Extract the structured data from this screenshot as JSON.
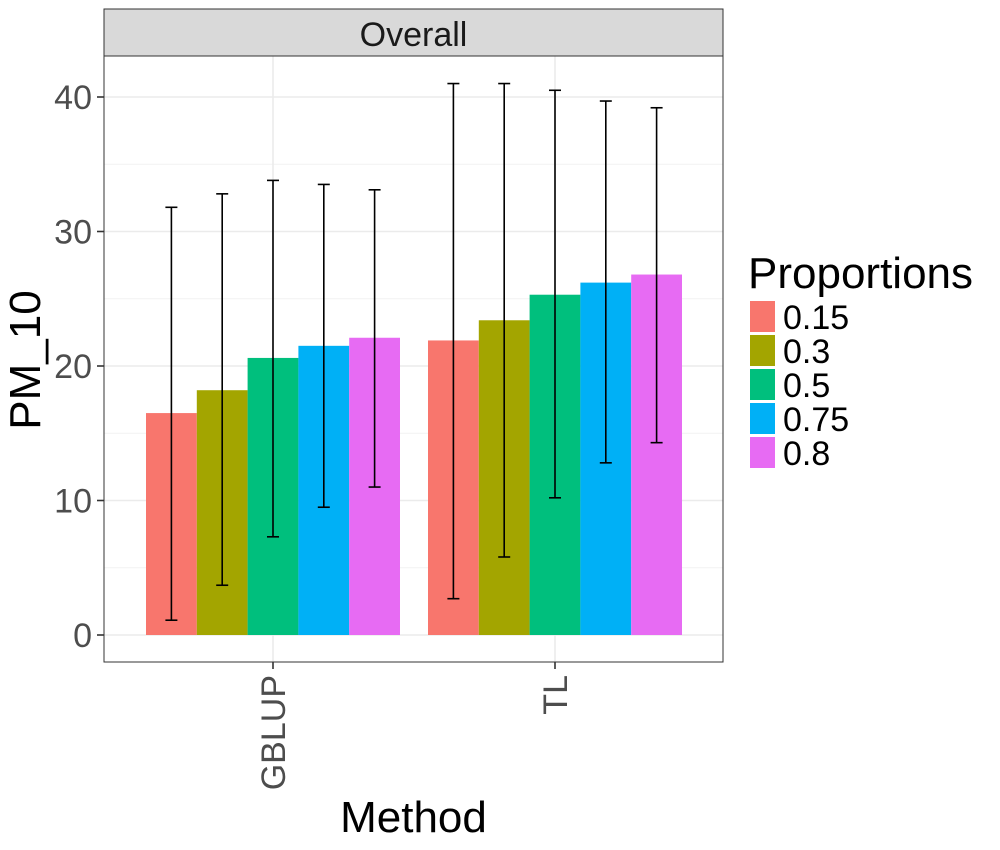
{
  "chart_data": {
    "type": "bar",
    "facet": "Overall",
    "xlabel": "Method",
    "ylabel": "PM_10",
    "ylim": [
      -2,
      44
    ],
    "y_ticks": [
      0,
      10,
      20,
      30,
      40
    ],
    "y_tick_labels": [
      "0",
      "10",
      "20",
      "30",
      "40"
    ],
    "categories": [
      "GBLUP",
      "TL"
    ],
    "legend": {
      "title": "Proportions",
      "position": "right"
    },
    "grid": true,
    "series": [
      {
        "name": "0.15",
        "color": "#F8766D",
        "values": [
          16.5,
          21.9
        ],
        "error_low": [
          1.1,
          2.7
        ],
        "error_high": [
          31.8,
          41.0
        ]
      },
      {
        "name": "0.3",
        "color": "#A3A500",
        "values": [
          18.2,
          23.4
        ],
        "error_low": [
          3.7,
          5.8
        ],
        "error_high": [
          32.8,
          41.0
        ]
      },
      {
        "name": "0.5",
        "color": "#00BF7D",
        "values": [
          20.6,
          25.3
        ],
        "error_low": [
          7.3,
          10.2
        ],
        "error_high": [
          33.8,
          40.5
        ]
      },
      {
        "name": "0.75",
        "color": "#00B0F6",
        "values": [
          21.5,
          26.2
        ],
        "error_low": [
          9.5,
          12.8
        ],
        "error_high": [
          33.5,
          39.7
        ]
      },
      {
        "name": "0.8",
        "color": "#E76BF3",
        "values": [
          22.1,
          26.8
        ],
        "error_low": [
          11.0,
          14.3
        ],
        "error_high": [
          33.1,
          39.2
        ]
      }
    ]
  }
}
